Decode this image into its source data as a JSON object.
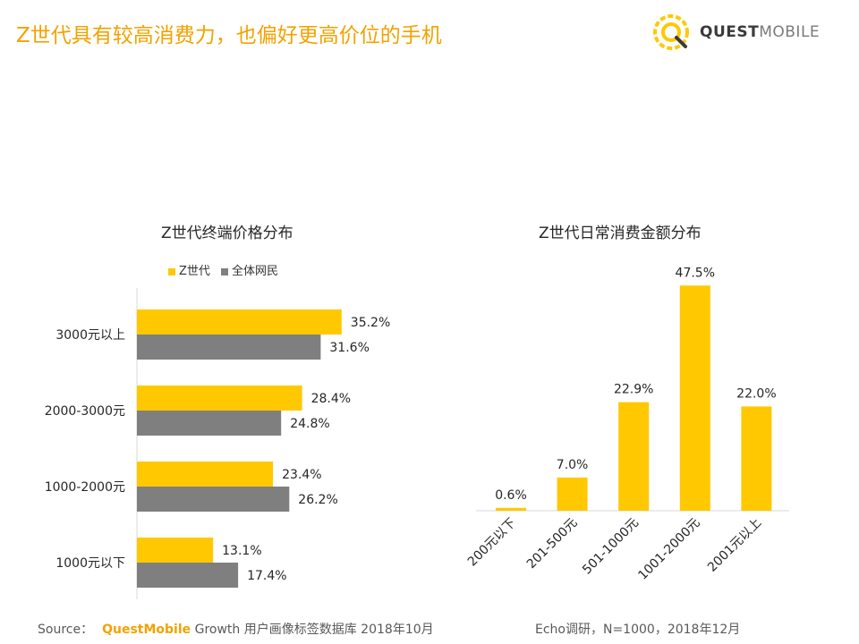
{
  "page": {
    "title": "Z世代具有较高消费力，也偏好更高价位的手机",
    "logo_bold": "QUEST",
    "logo_light": "MOBILE",
    "accent_color": "#FFC800",
    "gray_color": "#7F7F7F",
    "title_color": "#F2A200"
  },
  "chart_data": [
    {
      "type": "bar",
      "orientation": "horizontal",
      "title": "Z世代终端价格分布",
      "categories": [
        "3000元以上",
        "2000-3000元",
        "1000-2000元",
        "1000元以下"
      ],
      "series": [
        {
          "name": "Z世代",
          "values": [
            35.2,
            28.4,
            23.4,
            13.1
          ],
          "labels": [
            "35.2%",
            "28.4%",
            "23.4%",
            "13.1%"
          ],
          "color": "#FFC800"
        },
        {
          "name": "全体网民",
          "values": [
            31.6,
            24.8,
            26.2,
            17.4
          ],
          "labels": [
            "31.6%",
            "24.8%",
            "26.2%",
            "17.4%"
          ],
          "color": "#7F7F7F"
        }
      ],
      "xlim": [
        0,
        50
      ],
      "legend": "top-left",
      "grid": false
    },
    {
      "type": "bar",
      "orientation": "vertical",
      "title": "Z世代日常消费金额分布",
      "categories": [
        "200元以下",
        "201-500元",
        "501-1000元",
        "1001-2000元",
        "2001元以上"
      ],
      "values": [
        0.6,
        7.0,
        22.9,
        47.5,
        22.0
      ],
      "labels": [
        "0.6%",
        "7.0%",
        "22.9%",
        "47.5%",
        "22.0%"
      ],
      "color": "#FFC800",
      "ylim": [
        0,
        50
      ],
      "grid": false
    }
  ],
  "footer": {
    "source_prefix": "Source：",
    "source_brand": "QuestMobile",
    "source_text": "Growth 用户画像标签数据库 2018年10月",
    "right_text": "Echo调研，N=1000，2018年12月"
  }
}
